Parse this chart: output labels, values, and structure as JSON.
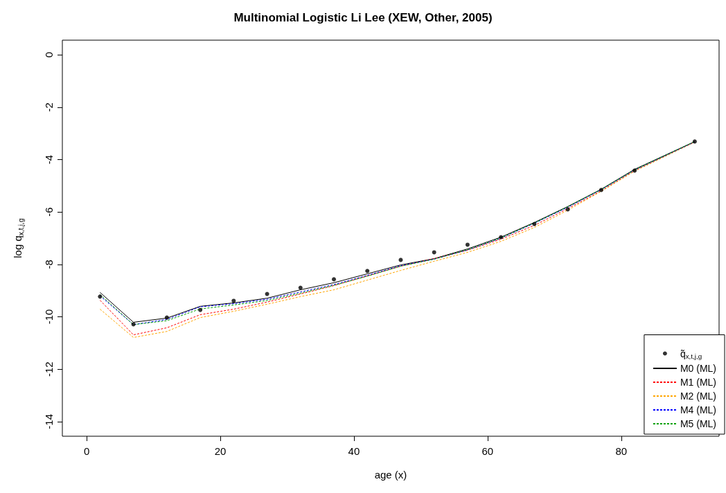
{
  "chart_data": {
    "type": "line",
    "title": "Multinomial Logistic Li Lee (XEW, Other, 2005)",
    "xlabel": "age (x)",
    "ylabel": "log q$_{x,t,j,g}$",
    "x": [
      2,
      7,
      12,
      17,
      22,
      27,
      32,
      37,
      42,
      47,
      52,
      57,
      62,
      67,
      72,
      77,
      82,
      91
    ],
    "xlim": [
      -3.64,
      94.64
    ],
    "xticks": [
      0,
      20,
      40,
      60,
      80
    ],
    "ylim": [
      -14.56,
      0.56
    ],
    "yticks": [
      0,
      -2,
      -4,
      -6,
      -8,
      -10,
      -12,
      -14
    ],
    "grid": false,
    "legend": "bottom right",
    "marker": "none",
    "series": [
      {
        "name": "q̃$_{x,t,j,g}$",
        "type": "scatter",
        "color": "#000000",
        "values": [
          -9.23,
          -10.29,
          -10.03,
          -9.74,
          -9.39,
          -9.13,
          -8.89,
          -8.57,
          -8.25,
          -7.83,
          -7.54,
          -7.25,
          -6.96,
          -6.46,
          -5.9,
          -5.16,
          -4.42,
          -3.31
        ]
      },
      {
        "name": "M0 (ML)",
        "color": "#000000",
        "line_style": "solid",
        "values": [
          -9.07,
          -10.21,
          -10.05,
          -9.6,
          -9.47,
          -9.29,
          -8.97,
          -8.7,
          -8.36,
          -8.02,
          -7.78,
          -7.41,
          -6.96,
          -6.4,
          -5.79,
          -5.13,
          -4.37,
          -3.31
        ]
      },
      {
        "name": "M1 (ML)",
        "color": "#ff0000",
        "line_style": "dashed",
        "values": [
          -9.37,
          -10.69,
          -10.42,
          -9.92,
          -9.71,
          -9.44,
          -9.13,
          -8.81,
          -8.44,
          -8.07,
          -7.78,
          -7.46,
          -7.04,
          -6.51,
          -5.87,
          -5.19,
          -4.42,
          -3.33
        ]
      },
      {
        "name": "M2 (ML)",
        "color": "#ffa500",
        "line_style": "dashed",
        "values": [
          -9.71,
          -10.79,
          -10.56,
          -10.03,
          -9.79,
          -9.52,
          -9.23,
          -8.97,
          -8.6,
          -8.23,
          -7.88,
          -7.54,
          -7.12,
          -6.59,
          -5.93,
          -5.21,
          -4.44,
          -3.33
        ]
      },
      {
        "name": "M4 (ML)",
        "color": "#0000ff",
        "line_style": "dashed",
        "values": [
          -9.2,
          -10.3,
          -10.1,
          -9.62,
          -9.5,
          -9.33,
          -9.05,
          -8.77,
          -8.42,
          -8.05,
          -7.8,
          -7.45,
          -7.0,
          -6.43,
          -5.82,
          -5.15,
          -4.4,
          -3.32
        ]
      },
      {
        "name": "M5 (ML)",
        "color": "#00a000",
        "line_style": "dashed",
        "values": [
          -9.15,
          -10.3,
          -10.15,
          -9.7,
          -9.55,
          -9.38,
          -9.1,
          -8.8,
          -8.45,
          -8.07,
          -7.8,
          -7.44,
          -6.99,
          -6.42,
          -5.8,
          -5.14,
          -4.39,
          -3.31
        ]
      }
    ]
  }
}
